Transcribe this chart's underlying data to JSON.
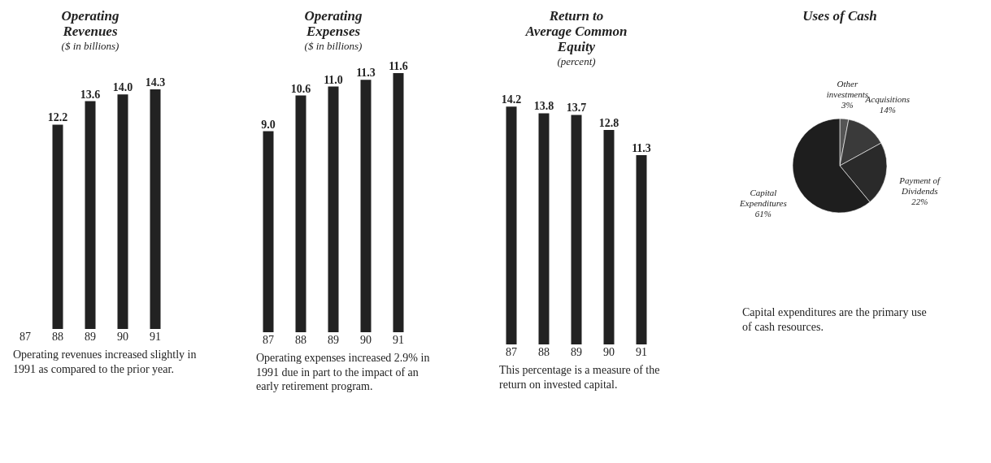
{
  "chart_data": [
    {
      "type": "bar",
      "title": "Operating Revenues",
      "subtitle": "($ in billions)",
      "categories": [
        "87",
        "88",
        "89",
        "90",
        "91"
      ],
      "values": [
        null,
        12.2,
        13.6,
        14.0,
        14.3
      ],
      "value_labels": [
        null,
        "12.2",
        "13.6",
        "14.0",
        "14.3"
      ],
      "color": "#222222",
      "tick_labels": "x",
      "annotations": [
        "Operating revenues increased slightly in 1991 as compared to the prior year."
      ]
    },
    {
      "type": "bar",
      "title": "Operating Expenses",
      "subtitle": "($ in billions)",
      "categories": [
        "87",
        "88",
        "89",
        "90",
        "91"
      ],
      "values": [
        9.0,
        10.6,
        11.0,
        11.3,
        11.6
      ],
      "value_labels": [
        "9.0",
        "10.6",
        "11.0",
        "11.3",
        "11.6"
      ],
      "color": "#222222",
      "tick_labels": "x",
      "annotations": [
        "Operating expenses increased 2.9% in 1991 due in part to the impact of an early retirement program."
      ]
    },
    {
      "type": "bar",
      "title": "Return to Average Common Equity",
      "subtitle": "(percent)",
      "categories": [
        "87",
        "88",
        "89",
        "90",
        "91"
      ],
      "values": [
        14.2,
        13.8,
        13.7,
        12.8,
        11.3
      ],
      "value_labels": [
        "14.2",
        "13.8",
        "13.7",
        "12.8",
        "11.3"
      ],
      "color": "#222222",
      "tick_labels": "x",
      "annotations": [
        "This percentage is a measure of the return on invested capital."
      ]
    },
    {
      "type": "pie",
      "title": "Uses of Cash",
      "categories": [
        "Other investments",
        "Acquisitions",
        "Payment of Dividends",
        "Capital Expenditures"
      ],
      "values": [
        3,
        14,
        22,
        61
      ],
      "value_labels": [
        "3%",
        "14%",
        "22%",
        "61%"
      ],
      "colors": [
        "#555555",
        "#3a3a3a",
        "#2a2a2a",
        "#1e1e1e"
      ],
      "annotations": [
        "Capital expenditures are the primary use of cash resources."
      ]
    }
  ]
}
